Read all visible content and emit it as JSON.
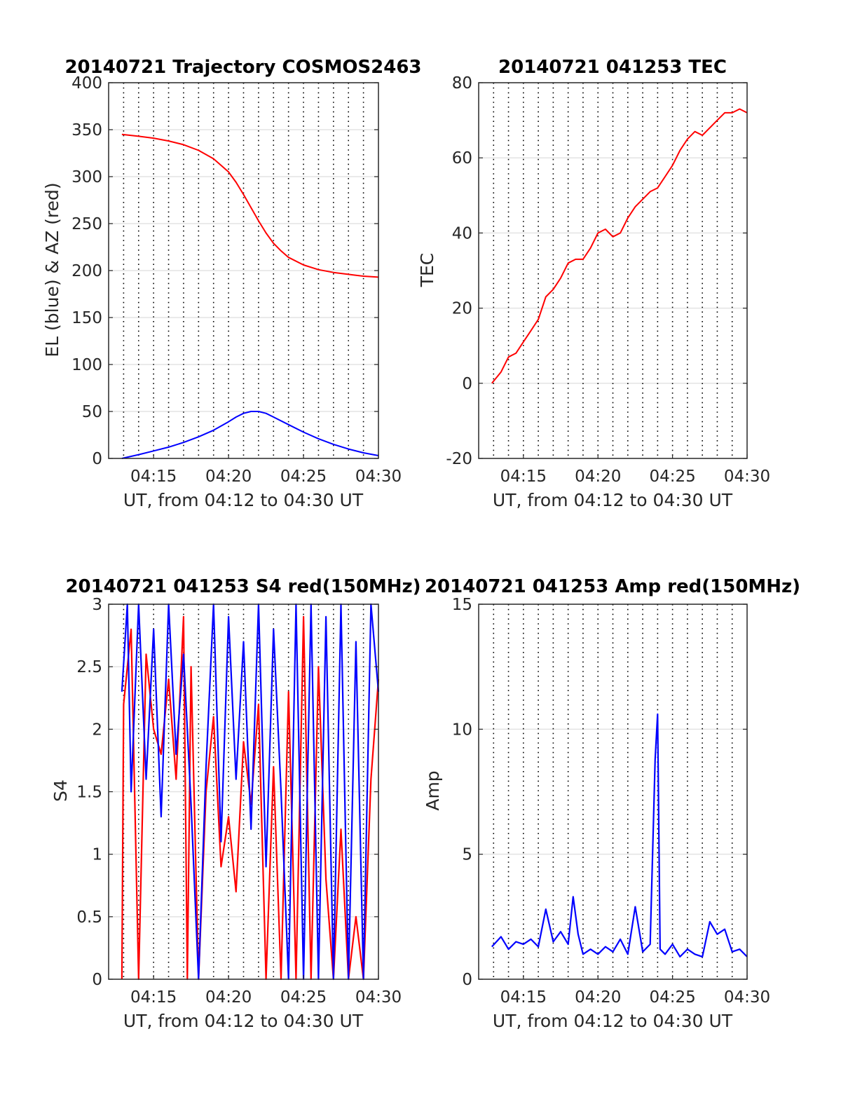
{
  "chart_data": [
    {
      "type": "line",
      "title": "20140721 Trajectory COSMOS2463",
      "xlabel": "UT, from 04:12 to 04:30 UT",
      "ylabel": "EL (blue) & AZ (red)",
      "xlim": [
        "04:12",
        "04:30"
      ],
      "ylim": [
        0,
        400
      ],
      "xticks": [
        "04:15",
        "04:20",
        "04:25",
        "04:30"
      ],
      "yticks": [
        0,
        50,
        100,
        150,
        200,
        250,
        300,
        350,
        400
      ],
      "grid": "on",
      "series": [
        {
          "name": "AZ",
          "color": "#ff0000",
          "x": [
            "04:12:53",
            "04:14:00",
            "04:15:00",
            "04:16:00",
            "04:17:00",
            "04:18:00",
            "04:19:00",
            "04:20:00",
            "04:20:30",
            "04:21:00",
            "04:21:30",
            "04:22:00",
            "04:22:30",
            "04:23:00",
            "04:23:30",
            "04:24:00",
            "04:25:00",
            "04:26:00",
            "04:27:00",
            "04:28:00",
            "04:29:00",
            "04:30:00"
          ],
          "y": [
            345,
            343,
            341,
            338,
            334,
            328,
            319,
            305,
            294,
            281,
            267,
            253,
            240,
            229,
            221,
            214,
            206,
            201,
            198,
            196,
            194,
            193
          ]
        },
        {
          "name": "EL",
          "color": "#0000ff",
          "x": [
            "04:12:53",
            "04:14:00",
            "04:15:00",
            "04:16:00",
            "04:17:00",
            "04:18:00",
            "04:19:00",
            "04:20:00",
            "04:20:30",
            "04:21:00",
            "04:21:30",
            "04:22:00",
            "04:22:30",
            "04:23:00",
            "04:24:00",
            "04:25:00",
            "04:26:00",
            "04:27:00",
            "04:28:00",
            "04:29:00",
            "04:30:00"
          ],
          "y": [
            0,
            4,
            8,
            12,
            17,
            23,
            30,
            39,
            44,
            48,
            50,
            50,
            48,
            44,
            36,
            28,
            21,
            15,
            10,
            6,
            3
          ]
        }
      ]
    },
    {
      "type": "line",
      "title": "20140721 041253 TEC",
      "xlabel": "UT, from 04:12 to 04:30 UT",
      "ylabel": "TEC",
      "xlim": [
        "04:12",
        "04:30"
      ],
      "ylim": [
        -20,
        80
      ],
      "xticks": [
        "04:15",
        "04:20",
        "04:25",
        "04:30"
      ],
      "yticks": [
        -20,
        0,
        20,
        40,
        60,
        80
      ],
      "grid": "on",
      "series": [
        {
          "color": "#ff0000",
          "x": [
            "04:12:53",
            "04:13:30",
            "04:14:00",
            "04:14:30",
            "04:15:00",
            "04:15:30",
            "04:16:00",
            "04:16:30",
            "04:17:00",
            "04:17:30",
            "04:18:00",
            "04:18:30",
            "04:19:00",
            "04:19:30",
            "04:20:00",
            "04:20:30",
            "04:21:00",
            "04:21:30",
            "04:22:00",
            "04:22:30",
            "04:23:00",
            "04:23:30",
            "04:24:00",
            "04:24:30",
            "04:25:00",
            "04:25:30",
            "04:26:00",
            "04:26:30",
            "04:27:00",
            "04:27:30",
            "04:28:00",
            "04:28:30",
            "04:29:00",
            "04:29:30",
            "04:30:00"
          ],
          "y": [
            0,
            3,
            7,
            8,
            11,
            14,
            17,
            23,
            25,
            28,
            32,
            33,
            33,
            36,
            40,
            41,
            39,
            40,
            44,
            47,
            49,
            51,
            52,
            55,
            58,
            62,
            65,
            67,
            66,
            68,
            70,
            72,
            72,
            73,
            72
          ]
        }
      ]
    },
    {
      "type": "line",
      "title": "20140721 041253 S4 red(150MHz)",
      "xlabel": "UT, from 04:12 to 04:30 UT",
      "ylabel": "S4",
      "xlim": [
        "04:12",
        "04:30"
      ],
      "ylim": [
        0,
        3
      ],
      "xticks": [
        "04:15",
        "04:20",
        "04:25",
        "04:30"
      ],
      "yticks": [
        0,
        0.5,
        1,
        1.5,
        2,
        2.5,
        3
      ],
      "grid": "on",
      "series": [
        {
          "color": "#ff0000",
          "x": [
            "04:12:53",
            "04:13:00",
            "04:13:30",
            "04:14:00",
            "04:14:30",
            "04:15:00",
            "04:15:30",
            "04:16:00",
            "04:16:30",
            "04:17:00",
            "04:17:15",
            "04:17:30",
            "04:18:00",
            "04:18:30",
            "04:19:00",
            "04:19:30",
            "04:20:00",
            "04:20:30",
            "04:21:00",
            "04:21:30",
            "04:22:00",
            "04:22:30",
            "04:23:00",
            "04:23:30",
            "04:24:00",
            "04:24:30",
            "04:25:00",
            "04:25:30",
            "04:26:00",
            "04:26:30",
            "04:27:00",
            "04:27:30",
            "04:28:00",
            "04:28:30",
            "04:29:00",
            "04:29:30",
            "04:30:00"
          ],
          "y": [
            0,
            2.2,
            2.8,
            0,
            2.6,
            2.0,
            1.8,
            2.4,
            1.6,
            2.9,
            0,
            2.5,
            0,
            1.5,
            2.1,
            0.9,
            1.3,
            0.7,
            1.9,
            1.4,
            2.2,
            0,
            1.7,
            0,
            2.3,
            0,
            2.9,
            0,
            2.5,
            0.8,
            0,
            1.2,
            0,
            0.5,
            0,
            1.6,
            2.4
          ]
        },
        {
          "color": "#0000ff",
          "x": [
            "04:12:53",
            "04:13:15",
            "04:13:30",
            "04:14:00",
            "04:14:30",
            "04:15:00",
            "04:15:30",
            "04:16:00",
            "04:16:30",
            "04:17:00",
            "04:17:30",
            "04:18:00",
            "04:18:30",
            "04:19:00",
            "04:19:30",
            "04:20:00",
            "04:20:30",
            "04:21:00",
            "04:21:30",
            "04:22:00",
            "04:22:30",
            "04:23:00",
            "04:23:30",
            "04:24:00",
            "04:24:30",
            "04:25:00",
            "04:25:30",
            "04:26:00",
            "04:26:30",
            "04:27:00",
            "04:27:30",
            "04:28:00",
            "04:28:30",
            "04:29:00",
            "04:29:30",
            "04:30:00"
          ],
          "y": [
            2.3,
            3.0,
            1.5,
            3.0,
            1.6,
            2.8,
            1.3,
            3.0,
            1.8,
            2.6,
            1.4,
            0.0,
            1.7,
            3.0,
            1.1,
            2.9,
            1.6,
            2.7,
            1.2,
            3.0,
            0.9,
            2.8,
            1.5,
            0.0,
            3.0,
            0.0,
            3.0,
            0.0,
            2.9,
            0.0,
            3.0,
            0.0,
            2.7,
            0.0,
            3.0,
            2.3
          ]
        }
      ]
    },
    {
      "type": "line",
      "title": "20140721 041253 Amp red(150MHz)",
      "xlabel": "UT, from 04:12 to 04:30 UT",
      "ylabel": "Amp",
      "xlim": [
        "04:12",
        "04:30"
      ],
      "ylim": [
        0,
        15
      ],
      "xticks": [
        "04:15",
        "04:20",
        "04:25",
        "04:30"
      ],
      "yticks": [
        0,
        5,
        10,
        15
      ],
      "grid": "on",
      "series": [
        {
          "color": "#0000ff",
          "x": [
            "04:12:53",
            "04:13:30",
            "04:14:00",
            "04:14:30",
            "04:15:00",
            "04:15:30",
            "04:16:00",
            "04:16:30",
            "04:17:00",
            "04:17:30",
            "04:18:00",
            "04:18:20",
            "04:18:40",
            "04:19:00",
            "04:19:30",
            "04:20:00",
            "04:20:30",
            "04:21:00",
            "04:21:30",
            "04:22:00",
            "04:22:30",
            "04:23:00",
            "04:23:30",
            "04:23:50",
            "04:24:00",
            "04:24:10",
            "04:24:30",
            "04:25:00",
            "04:25:30",
            "04:26:00",
            "04:26:30",
            "04:27:00",
            "04:27:30",
            "04:28:00",
            "04:28:30",
            "04:29:00",
            "04:29:30",
            "04:30:00"
          ],
          "y": [
            1.3,
            1.7,
            1.2,
            1.5,
            1.4,
            1.6,
            1.3,
            2.8,
            1.5,
            1.9,
            1.4,
            3.3,
            1.8,
            1.0,
            1.2,
            1.0,
            1.3,
            1.1,
            1.6,
            1.0,
            2.9,
            1.1,
            1.4,
            8.8,
            10.6,
            1.2,
            1.0,
            1.4,
            0.9,
            1.2,
            1.0,
            0.9,
            2.3,
            1.8,
            2.0,
            1.1,
            1.2,
            0.9
          ]
        }
      ]
    }
  ]
}
